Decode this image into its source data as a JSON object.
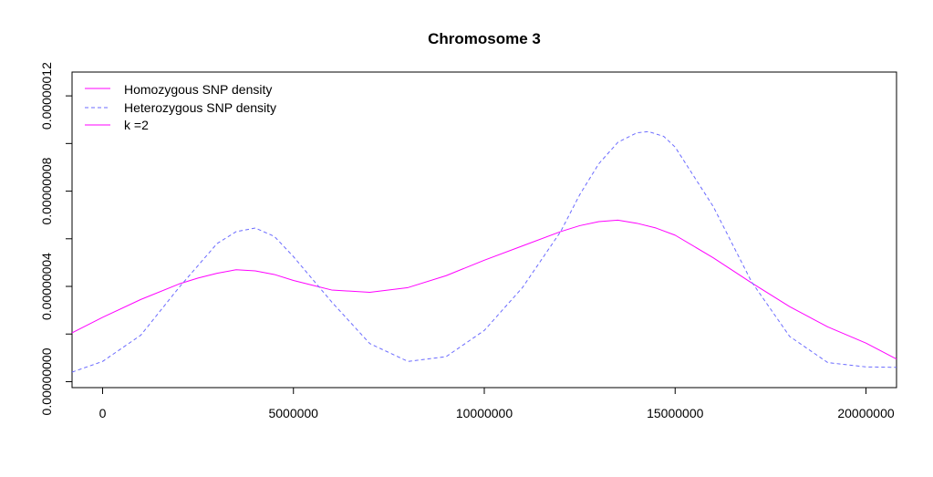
{
  "chart_data": {
    "type": "line",
    "title": "Chromosome 3",
    "xlabel": "",
    "ylabel": "",
    "xlim": [
      -800000,
      20800000
    ],
    "ylim": [
      -2.5e-09,
      1.3e-07
    ],
    "x_ticks": [
      0,
      5000000,
      10000000,
      15000000,
      20000000
    ],
    "x_tick_labels": [
      "0",
      "5000000",
      "10000000",
      "15000000",
      "20000000"
    ],
    "y_ticks": [
      0,
      2e-08,
      4e-08,
      6e-08,
      8e-08,
      1e-07,
      1.2e-07
    ],
    "y_tick_labels": [
      "0.00000000",
      "",
      "0.00000004",
      "",
      "0.00000008",
      "",
      "0.00000012"
    ],
    "grid": false,
    "legend_position": "top-left",
    "series": [
      {
        "name": "Homozygous SNP density",
        "color": "#ff00ff",
        "dash": "solid",
        "x": [
          -800000,
          0,
          1000000,
          2000000,
          2500000,
          3000000,
          3500000,
          4000000,
          4500000,
          5000000,
          5500000,
          6000000,
          7000000,
          8000000,
          9000000,
          10000000,
          11000000,
          12000000,
          12500000,
          13000000,
          13500000,
          14000000,
          14500000,
          15000000,
          16000000,
          17000000,
          18000000,
          19000000,
          20000000,
          20800000
        ],
        "y": [
          2.05e-08,
          2.7e-08,
          3.45e-08,
          4.1e-08,
          4.35e-08,
          4.55e-08,
          4.7e-08,
          4.65e-08,
          4.5e-08,
          4.25e-08,
          4.05e-08,
          3.85e-08,
          3.75e-08,
          3.95e-08,
          4.45e-08,
          5.1e-08,
          5.7e-08,
          6.3e-08,
          6.55e-08,
          6.72e-08,
          6.78e-08,
          6.65e-08,
          6.45e-08,
          6.15e-08,
          5.2e-08,
          4.15e-08,
          3.15e-08,
          2.3e-08,
          1.62e-08,
          9.5e-09
        ]
      },
      {
        "name": "Heterozygous SNP density",
        "color": "#6b6bff",
        "dash": "dashed",
        "x": [
          -800000,
          0,
          1000000,
          2000000,
          3000000,
          3500000,
          4000000,
          4500000,
          5000000,
          5500000,
          6000000,
          7000000,
          8000000,
          9000000,
          10000000,
          11000000,
          12000000,
          12500000,
          13000000,
          13500000,
          14000000,
          14300000,
          14700000,
          15000000,
          16000000,
          17000000,
          18000000,
          19000000,
          20000000,
          20800000
        ],
        "y": [
          4e-09,
          8.5e-09,
          1.95e-08,
          3.95e-08,
          5.8e-08,
          6.3e-08,
          6.45e-08,
          6.1e-08,
          5.25e-08,
          4.3e-08,
          3.35e-08,
          1.6e-08,
          8.5e-09,
          1.05e-08,
          2.15e-08,
          3.95e-08,
          6.3e-08,
          7.85e-08,
          9.15e-08,
          1.005e-07,
          1.045e-07,
          1.05e-07,
          1.03e-07,
          9.85e-08,
          7.35e-08,
          4.2e-08,
          1.9e-08,
          8e-09,
          6.2e-09,
          6e-09
        ]
      }
    ],
    "legend": [
      {
        "label": "Homozygous SNP density",
        "color": "#ff00ff",
        "dash": "solid"
      },
      {
        "label": "Heterozygous SNP density",
        "color": "#6b6bff",
        "dash": "dashed"
      },
      {
        "label": "k =2",
        "color": "#ff00ff",
        "dash": "solid"
      }
    ]
  }
}
